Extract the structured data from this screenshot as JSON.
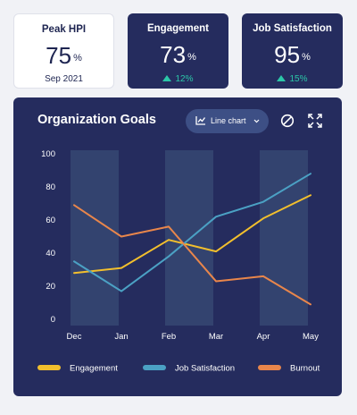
{
  "kpis": {
    "peak_hpi": {
      "title": "Peak HPI",
      "value": "75",
      "unit": "%",
      "date": "Sep 2021"
    },
    "engagement": {
      "title": "Engagement",
      "value": "73",
      "unit": "%",
      "delta": "12%"
    },
    "job_satisfaction": {
      "title": "Job Satisfaction",
      "value": "95",
      "unit": "%",
      "delta": "15%"
    }
  },
  "panel": {
    "title": "Organization Goals",
    "chart_type_label": "Line chart",
    "icons": [
      "line-chart-icon",
      "chevron-down-icon",
      "block-icon",
      "expand-icon"
    ]
  },
  "colors": {
    "panel_bg": "#252c5e",
    "band": "#33436f",
    "engagement": "#f2bf2d",
    "job_satisfaction": "#4ba1c4",
    "burnout": "#e9864b",
    "positive": "#2cc7a8"
  },
  "chart_data": {
    "type": "line",
    "title": "Organization Goals",
    "categories": [
      "Dec",
      "Jan",
      "Feb",
      "Mar",
      "Apr",
      "May"
    ],
    "ylim": [
      0,
      100
    ],
    "yticks": [
      "0",
      "20",
      "40",
      "60",
      "80",
      "100"
    ],
    "grid": false,
    "legend": "bottom",
    "series": [
      {
        "name": "Engagement",
        "values": [
          28,
          31,
          48,
          41,
          61,
          75
        ]
      },
      {
        "name": "Job Satisfaction",
        "values": [
          35,
          17,
          38,
          62,
          71,
          88
        ]
      },
      {
        "name": "Burnout",
        "values": [
          69,
          50,
          56,
          23,
          26,
          9
        ]
      }
    ]
  }
}
